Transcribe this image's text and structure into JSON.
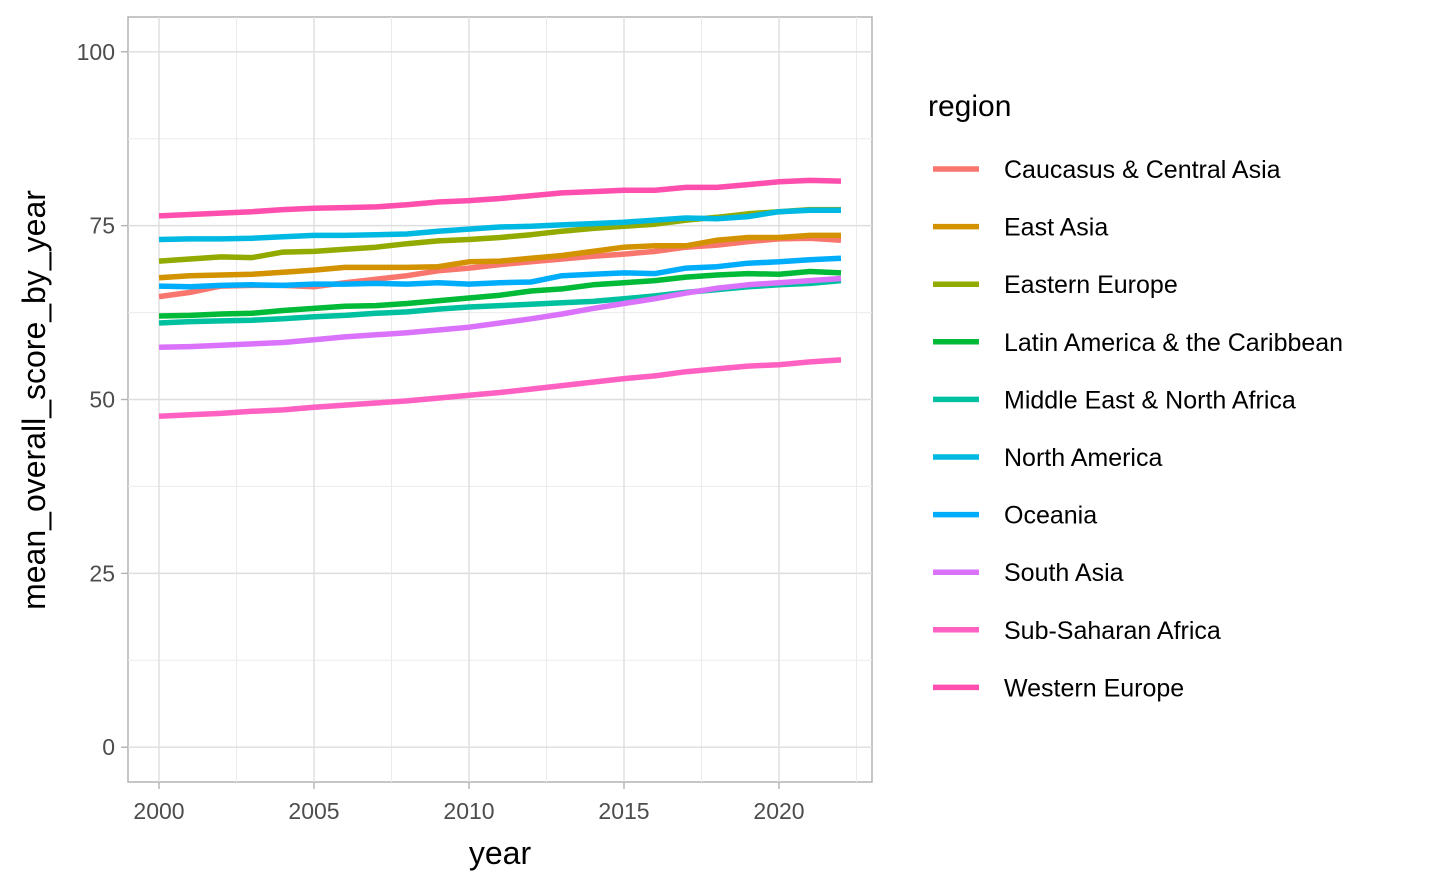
{
  "chart_data": {
    "type": "line",
    "xlabel": "year",
    "ylabel": "mean_overall_score_by_year",
    "xlim": [
      1999,
      2023
    ],
    "ylim": [
      -5,
      105
    ],
    "x_ticks": [
      2000,
      2005,
      2010,
      2015,
      2020
    ],
    "y_ticks": [
      0,
      25,
      50,
      75,
      100
    ],
    "grid": true,
    "legend": {
      "title": "region",
      "placement": "right"
    },
    "x": [
      2000,
      2001,
      2002,
      2003,
      2004,
      2005,
      2006,
      2007,
      2008,
      2009,
      2010,
      2011,
      2012,
      2013,
      2014,
      2015,
      2016,
      2017,
      2018,
      2019,
      2020,
      2021,
      2022
    ],
    "series": [
      {
        "name": "Caucasus & Central Asia",
        "color": "#F8766D",
        "values": [
          64.8,
          65.4,
          66.3,
          66.4,
          66.4,
          66.2,
          66.8,
          67.3,
          67.8,
          68.5,
          68.9,
          69.4,
          69.8,
          70.2,
          70.6,
          70.9,
          71.3,
          71.9,
          72.2,
          72.7,
          73.1,
          73.2,
          72.9
        ]
      },
      {
        "name": "East Asia",
        "color": "#D39200",
        "values": [
          67.5,
          67.8,
          67.9,
          68.0,
          68.3,
          68.6,
          69.0,
          69.0,
          69.0,
          69.1,
          69.8,
          69.9,
          70.3,
          70.7,
          71.3,
          71.9,
          72.1,
          72.1,
          72.9,
          73.3,
          73.3,
          73.6,
          73.6
        ]
      },
      {
        "name": "Eastern Europe",
        "color": "#93AA00",
        "values": [
          69.9,
          70.2,
          70.5,
          70.4,
          71.2,
          71.3,
          71.6,
          71.9,
          72.4,
          72.8,
          73.0,
          73.3,
          73.7,
          74.2,
          74.6,
          74.9,
          75.2,
          75.8,
          76.2,
          76.7,
          77.0,
          77.3,
          77.3
        ]
      },
      {
        "name": "Latin America & the Caribbean",
        "color": "#00BA38",
        "values": [
          62.0,
          62.1,
          62.3,
          62.4,
          62.8,
          63.1,
          63.4,
          63.5,
          63.8,
          64.2,
          64.6,
          65.0,
          65.6,
          65.9,
          66.5,
          66.8,
          67.1,
          67.6,
          67.9,
          68.1,
          68.0,
          68.4,
          68.2
        ]
      },
      {
        "name": "Middle East & North Africa",
        "color": "#00C19F",
        "values": [
          61.0,
          61.2,
          61.3,
          61.4,
          61.6,
          61.9,
          62.1,
          62.4,
          62.6,
          63.0,
          63.3,
          63.5,
          63.7,
          63.9,
          64.1,
          64.5,
          64.9,
          65.4,
          65.8,
          66.2,
          66.5,
          66.7,
          67.1
        ]
      },
      {
        "name": "North America",
        "color": "#00B9E3",
        "values": [
          73.0,
          73.1,
          73.1,
          73.2,
          73.4,
          73.6,
          73.6,
          73.7,
          73.8,
          74.2,
          74.5,
          74.8,
          74.9,
          75.1,
          75.3,
          75.5,
          75.8,
          76.1,
          76.0,
          76.3,
          77.0,
          77.2,
          77.2
        ]
      },
      {
        "name": "Oceania",
        "color": "#00ADFA",
        "values": [
          66.3,
          66.2,
          66.4,
          66.5,
          66.4,
          66.6,
          66.6,
          66.7,
          66.6,
          66.8,
          66.6,
          66.8,
          66.9,
          67.8,
          68.0,
          68.2,
          68.1,
          68.9,
          69.1,
          69.6,
          69.8,
          70.1,
          70.3
        ]
      },
      {
        "name": "South Asia",
        "color": "#DB72FB",
        "values": [
          57.5,
          57.6,
          57.8,
          58.0,
          58.2,
          58.6,
          59.0,
          59.3,
          59.6,
          60.0,
          60.4,
          61.0,
          61.6,
          62.3,
          63.1,
          63.8,
          64.5,
          65.3,
          66.0,
          66.5,
          66.8,
          67.1,
          67.4
        ]
      },
      {
        "name": "Sub-Saharan Africa",
        "color": "#FF61C3",
        "values": [
          47.6,
          47.8,
          48.0,
          48.3,
          48.5,
          48.9,
          49.2,
          49.5,
          49.8,
          50.2,
          50.6,
          51.0,
          51.5,
          52.0,
          52.5,
          53.0,
          53.4,
          54.0,
          54.4,
          54.8,
          55.0,
          55.4,
          55.7
        ]
      },
      {
        "name": "Western Europe",
        "color": "#FF4FAE",
        "values": [
          76.4,
          76.6,
          76.8,
          77.0,
          77.3,
          77.5,
          77.6,
          77.7,
          78.0,
          78.4,
          78.6,
          78.9,
          79.3,
          79.7,
          79.9,
          80.1,
          80.1,
          80.5,
          80.5,
          80.9,
          81.3,
          81.5,
          81.4
        ]
      }
    ]
  }
}
